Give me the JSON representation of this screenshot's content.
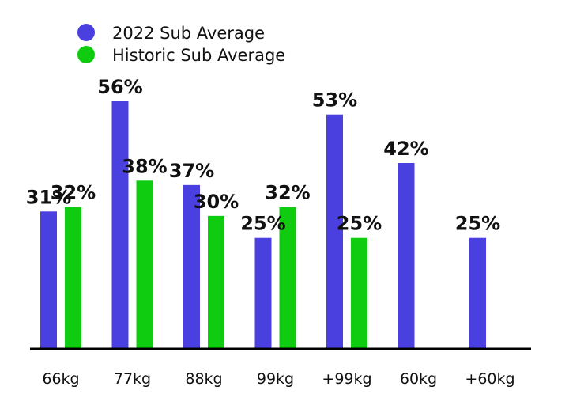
{
  "chart_data": {
    "type": "bar",
    "categories": [
      "66kg",
      "77kg",
      "88kg",
      "99kg",
      "+99kg",
      "60kg",
      "+60kg"
    ],
    "series": [
      {
        "name": "2022 Sub Average",
        "color": "#4a40e0",
        "values": [
          31,
          56,
          37,
          25,
          53,
          42,
          25
        ]
      },
      {
        "name": "Historic Sub Average",
        "color": "#10cc10",
        "values": [
          32,
          38,
          30,
          32,
          25,
          null,
          null
        ]
      }
    ],
    "value_suffix": "%",
    "ylim": [
      0,
      58
    ],
    "grid": false,
    "legend": "top-left",
    "title": "",
    "xlabel": "",
    "ylabel": ""
  }
}
